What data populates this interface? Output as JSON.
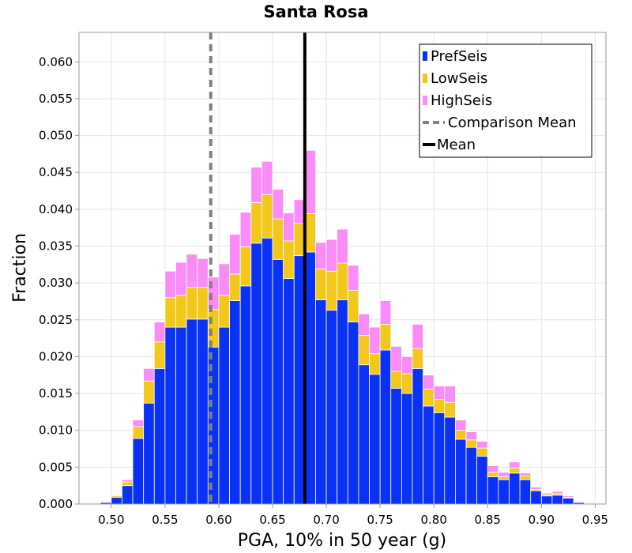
{
  "chart_data": {
    "type": "bar",
    "stacked": true,
    "title": "Santa Rosa",
    "xlabel": "PGA, 10% in 50 year (g)",
    "ylabel": "Fraction",
    "xlim": [
      0.47,
      0.96
    ],
    "ylim": [
      0.0,
      0.064
    ],
    "bin_width": 0.01,
    "x_ticks": [
      "0.50",
      "0.55",
      "0.60",
      "0.65",
      "0.70",
      "0.75",
      "0.80",
      "0.85",
      "0.90",
      "0.95"
    ],
    "y_ticks": [
      "0.000",
      "0.005",
      "0.010",
      "0.015",
      "0.020",
      "0.025",
      "0.030",
      "0.035",
      "0.040",
      "0.045",
      "0.050",
      "0.055",
      "0.060"
    ],
    "grid": true,
    "legend_position": "top-right",
    "bin_centers": [
      0.495,
      0.505,
      0.515,
      0.525,
      0.535,
      0.545,
      0.555,
      0.565,
      0.575,
      0.585,
      0.595,
      0.605,
      0.615,
      0.625,
      0.635,
      0.645,
      0.655,
      0.665,
      0.675,
      0.685,
      0.695,
      0.705,
      0.715,
      0.725,
      0.735,
      0.745,
      0.755,
      0.765,
      0.775,
      0.785,
      0.795,
      0.805,
      0.815,
      0.825,
      0.835,
      0.845,
      0.855,
      0.865,
      0.875,
      0.885,
      0.895,
      0.905,
      0.915,
      0.925,
      0.935,
      0.945
    ],
    "series": [
      {
        "name": "PrefSeis",
        "color": "#0a32f5",
        "values": [
          0.0002,
          0.0009,
          0.0025,
          0.0089,
          0.0137,
          0.0184,
          0.024,
          0.024,
          0.0251,
          0.0251,
          0.0213,
          0.024,
          0.0276,
          0.0296,
          0.0354,
          0.0361,
          0.0332,
          0.0306,
          0.0337,
          0.0342,
          0.0277,
          0.0263,
          0.0277,
          0.0247,
          0.0189,
          0.0176,
          0.0209,
          0.0157,
          0.015,
          0.0184,
          0.0133,
          0.0124,
          0.0118,
          0.0088,
          0.0077,
          0.0065,
          0.0037,
          0.0033,
          0.0042,
          0.0033,
          0.0018,
          0.0011,
          0.0012,
          0.0008,
          0.0002,
          0.0001
        ]
      },
      {
        "name": "LowSeis",
        "color": "#f2c81c",
        "values": [
          0.0001,
          0.0002,
          0.0005,
          0.0016,
          0.003,
          0.0036,
          0.004,
          0.0043,
          0.0043,
          0.0043,
          0.0051,
          0.0043,
          0.0036,
          0.0053,
          0.0055,
          0.0059,
          0.0055,
          0.0051,
          0.0044,
          0.0052,
          0.0042,
          0.0053,
          0.005,
          0.0043,
          0.004,
          0.0028,
          0.0035,
          0.0023,
          0.0027,
          0.0027,
          0.0023,
          0.0018,
          0.002,
          0.0012,
          0.001,
          0.0011,
          0.0006,
          0.0004,
          0.0007,
          0.0005,
          0.0002,
          0.0002,
          0.0002,
          0.0001,
          0.0001,
          0.0001
        ]
      },
      {
        "name": "HighSeis",
        "color": "#f98cf6",
        "values": [
          0.0001,
          0.0001,
          0.0003,
          0.0009,
          0.0017,
          0.0027,
          0.0036,
          0.0045,
          0.0045,
          0.0039,
          0.0044,
          0.0043,
          0.0054,
          0.0047,
          0.0048,
          0.0045,
          0.004,
          0.0038,
          0.0032,
          0.0086,
          0.0036,
          0.0043,
          0.0046,
          0.0034,
          0.0029,
          0.0036,
          0.0032,
          0.0034,
          0.0023,
          0.0033,
          0.0019,
          0.0018,
          0.0022,
          0.0014,
          0.0011,
          0.0009,
          0.0009,
          0.0006,
          0.0008,
          0.0004,
          0.0003,
          0.0002,
          0.0003,
          0.0002,
          0.0001,
          0.0001
        ]
      }
    ],
    "mean": {
      "name": "Mean",
      "x": 0.68,
      "color": "#000000"
    },
    "comparison_mean": {
      "name": "Comparison Mean",
      "x": 0.5925,
      "color": "#808080",
      "style": "dashed"
    }
  }
}
